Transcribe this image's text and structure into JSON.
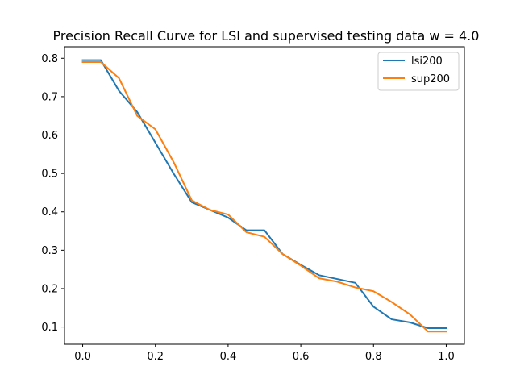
{
  "chart_data": {
    "type": "line",
    "title": "Precision Recall Curve for LSI and supervised testing data w = 4.0",
    "xlabel": "",
    "ylabel": "",
    "xlim": [
      -0.05,
      1.05
    ],
    "ylim": [
      0.055,
      0.83
    ],
    "xticks": [
      0.0,
      0.2,
      0.4,
      0.6,
      0.8,
      1.0
    ],
    "xtick_labels": [
      "0.0",
      "0.2",
      "0.4",
      "0.6",
      "0.8",
      "1.0"
    ],
    "yticks": [
      0.1,
      0.2,
      0.3,
      0.4,
      0.5,
      0.6,
      0.7,
      0.8
    ],
    "ytick_labels": [
      "0.1",
      "0.2",
      "0.3",
      "0.4",
      "0.5",
      "0.6",
      "0.7",
      "0.8"
    ],
    "grid": false,
    "legend_position": "top-right",
    "x": [
      0.0,
      0.05,
      0.1,
      0.15,
      0.2,
      0.25,
      0.3,
      0.35,
      0.4,
      0.45,
      0.5,
      0.55,
      0.6,
      0.65,
      0.7,
      0.75,
      0.8,
      0.85,
      0.9,
      0.95,
      1.0
    ],
    "series": [
      {
        "name": "lsi200",
        "color": "#1f77b4",
        "values": [
          0.795,
          0.795,
          0.715,
          0.66,
          0.58,
          0.5,
          0.425,
          0.405,
          0.385,
          0.352,
          0.352,
          0.29,
          0.262,
          0.235,
          0.225,
          0.215,
          0.153,
          0.12,
          0.112,
          0.097,
          0.097
        ]
      },
      {
        "name": "sup200",
        "color": "#ff7f0e",
        "values": [
          0.79,
          0.79,
          0.748,
          0.65,
          0.615,
          0.53,
          0.43,
          0.405,
          0.393,
          0.347,
          0.335,
          0.29,
          0.26,
          0.227,
          0.218,
          0.203,
          0.193,
          0.165,
          0.133,
          0.088,
          0.088
        ]
      }
    ]
  }
}
